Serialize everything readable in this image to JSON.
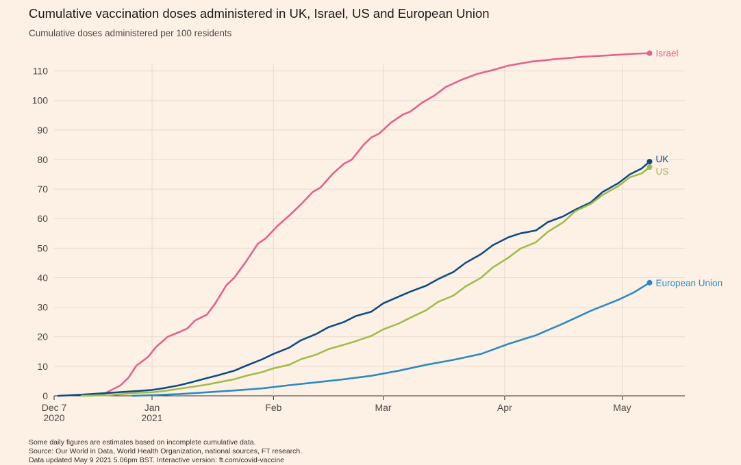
{
  "title": "Cumulative vaccination doses administered in UK, Israel, US and European Union",
  "subtitle": "Cumulative doses administered per 100 residents",
  "footer": {
    "line1": "Some daily figures are estimates based on incomplete cumulative data.",
    "line2": "Source: Our World in Data, World Health Organization, national sources, FT research.",
    "line3": "Data updated May 9 2021 5.06pm BST. Interactive version: ft.com/covid-vaccine"
  },
  "chart_data": {
    "type": "line",
    "title": "Cumulative vaccination doses administered in UK, Israel, US and European Union",
    "subtitle": "Cumulative doses administered per 100 residents",
    "xlabel": "",
    "ylabel": "",
    "ylim": [
      0,
      115
    ],
    "yticks": [
      0,
      10,
      20,
      30,
      40,
      50,
      60,
      70,
      80,
      90,
      100,
      110
    ],
    "xlim": [
      "2020-12-07",
      "2021-05-17"
    ],
    "xticks": [
      {
        "date": "2020-12-07",
        "line1": "Dec 7",
        "line2": "2020"
      },
      {
        "date": "2021-01-01",
        "line1": "Jan",
        "line2": "2021"
      },
      {
        "date": "2021-02-01",
        "line1": "Feb",
        "line2": ""
      },
      {
        "date": "2021-03-01",
        "line1": "Mar",
        "line2": ""
      },
      {
        "date": "2021-04-01",
        "line1": "Apr",
        "line2": ""
      },
      {
        "date": "2021-05-01",
        "line1": "May",
        "line2": ""
      }
    ],
    "grid": true,
    "legend": "end-labels",
    "series": [
      {
        "name": "Israel",
        "color": "#e3628f",
        "points": [
          [
            "2020-12-19",
            0.2
          ],
          [
            "2020-12-22",
            2.2
          ],
          [
            "2020-12-24",
            3.6
          ],
          [
            "2020-12-26",
            6.2
          ],
          [
            "2020-12-28",
            10.2
          ],
          [
            "2020-12-31",
            13.2
          ],
          [
            "2021-01-02",
            16.5
          ],
          [
            "2021-01-05",
            20
          ],
          [
            "2021-01-08",
            21.6
          ],
          [
            "2021-01-10",
            22.8
          ],
          [
            "2021-01-12",
            25.5
          ],
          [
            "2021-01-15",
            27.5
          ],
          [
            "2021-01-17",
            31
          ],
          [
            "2021-01-20",
            37.5
          ],
          [
            "2021-01-22",
            40
          ],
          [
            "2021-01-25",
            45.5
          ],
          [
            "2021-01-28",
            51.5
          ],
          [
            "2021-01-30",
            53.3
          ],
          [
            "2021-02-02",
            57.5
          ],
          [
            "2021-02-05",
            61
          ],
          [
            "2021-02-08",
            64.8
          ],
          [
            "2021-02-11",
            69
          ],
          [
            "2021-02-13",
            70.5
          ],
          [
            "2021-02-16",
            75
          ],
          [
            "2021-02-19",
            78.6
          ],
          [
            "2021-02-21",
            80
          ],
          [
            "2021-02-24",
            85
          ],
          [
            "2021-02-26",
            87.5
          ],
          [
            "2021-02-28",
            88.8
          ],
          [
            "2021-03-03",
            92.5
          ],
          [
            "2021-03-06",
            95.2
          ],
          [
            "2021-03-08",
            96.3
          ],
          [
            "2021-03-11",
            99.3
          ],
          [
            "2021-03-14",
            101.6
          ],
          [
            "2021-03-17",
            104.6
          ],
          [
            "2021-03-21",
            107
          ],
          [
            "2021-03-25",
            109
          ],
          [
            "2021-03-29",
            110.3
          ],
          [
            "2021-04-02",
            111.8
          ],
          [
            "2021-04-08",
            113.2
          ],
          [
            "2021-04-14",
            114
          ],
          [
            "2021-04-21",
            114.8
          ],
          [
            "2021-04-28",
            115.3
          ],
          [
            "2021-05-04",
            115.8
          ],
          [
            "2021-05-08",
            116
          ]
        ]
      },
      {
        "name": "UK",
        "color": "#0f4c81",
        "points": [
          [
            "2020-12-08",
            0
          ],
          [
            "2020-12-14",
            0.4
          ],
          [
            "2020-12-21",
            1
          ],
          [
            "2020-12-28",
            1.6
          ],
          [
            "2021-01-01",
            2
          ],
          [
            "2021-01-04",
            2.6
          ],
          [
            "2021-01-08",
            3.6
          ],
          [
            "2021-01-11",
            4.6
          ],
          [
            "2021-01-15",
            6
          ],
          [
            "2021-01-18",
            7
          ],
          [
            "2021-01-22",
            8.5
          ],
          [
            "2021-01-25",
            10.2
          ],
          [
            "2021-01-29",
            12.3
          ],
          [
            "2021-02-01",
            14.2
          ],
          [
            "2021-02-05",
            16.3
          ],
          [
            "2021-02-08",
            18.8
          ],
          [
            "2021-02-12",
            21
          ],
          [
            "2021-02-15",
            23.2
          ],
          [
            "2021-02-19",
            25
          ],
          [
            "2021-02-22",
            27
          ],
          [
            "2021-02-26",
            28.5
          ],
          [
            "2021-03-01",
            31.3
          ],
          [
            "2021-03-05",
            33.6
          ],
          [
            "2021-03-08",
            35.3
          ],
          [
            "2021-03-12",
            37.3
          ],
          [
            "2021-03-15",
            39.5
          ],
          [
            "2021-03-19",
            42
          ],
          [
            "2021-03-22",
            45
          ],
          [
            "2021-03-26",
            48
          ],
          [
            "2021-03-29",
            51
          ],
          [
            "2021-04-02",
            53.7
          ],
          [
            "2021-04-05",
            55
          ],
          [
            "2021-04-09",
            56
          ],
          [
            "2021-04-12",
            58.8
          ],
          [
            "2021-04-16",
            60.8
          ],
          [
            "2021-04-19",
            63
          ],
          [
            "2021-04-23",
            65.5
          ],
          [
            "2021-04-26",
            69
          ],
          [
            "2021-04-30",
            72
          ],
          [
            "2021-05-03",
            75
          ],
          [
            "2021-05-06",
            77
          ],
          [
            "2021-05-08",
            79.3
          ]
        ]
      },
      {
        "name": "US",
        "color": "#a2bb4d",
        "points": [
          [
            "2020-12-14",
            0
          ],
          [
            "2020-12-21",
            0.2
          ],
          [
            "2020-12-28",
            1
          ],
          [
            "2021-01-01",
            1.2
          ],
          [
            "2021-01-04",
            1.6
          ],
          [
            "2021-01-08",
            2.4
          ],
          [
            "2021-01-11",
            3
          ],
          [
            "2021-01-15",
            3.8
          ],
          [
            "2021-01-18",
            4.6
          ],
          [
            "2021-01-22",
            5.6
          ],
          [
            "2021-01-25",
            6.8
          ],
          [
            "2021-01-29",
            8
          ],
          [
            "2021-02-01",
            9.3
          ],
          [
            "2021-02-05",
            10.5
          ],
          [
            "2021-02-08",
            12.4
          ],
          [
            "2021-02-12",
            14
          ],
          [
            "2021-02-15",
            15.8
          ],
          [
            "2021-02-19",
            17.3
          ],
          [
            "2021-02-22",
            18.5
          ],
          [
            "2021-02-26",
            20.3
          ],
          [
            "2021-03-01",
            22.5
          ],
          [
            "2021-03-05",
            24.5
          ],
          [
            "2021-03-08",
            26.5
          ],
          [
            "2021-03-12",
            29
          ],
          [
            "2021-03-15",
            31.8
          ],
          [
            "2021-03-19",
            34
          ],
          [
            "2021-03-22",
            37
          ],
          [
            "2021-03-26",
            40
          ],
          [
            "2021-03-29",
            43.5
          ],
          [
            "2021-04-02",
            46.8
          ],
          [
            "2021-04-05",
            49.8
          ],
          [
            "2021-04-09",
            52
          ],
          [
            "2021-04-12",
            55.5
          ],
          [
            "2021-04-16",
            58.8
          ],
          [
            "2021-04-19",
            62.5
          ],
          [
            "2021-04-23",
            65
          ],
          [
            "2021-04-26",
            68
          ],
          [
            "2021-04-30",
            71
          ],
          [
            "2021-05-03",
            74
          ],
          [
            "2021-05-06",
            75.3
          ],
          [
            "2021-05-08",
            77.4
          ]
        ]
      },
      {
        "name": "European Union",
        "color": "#2a8ac5",
        "points": [
          [
            "2020-12-27",
            0
          ],
          [
            "2021-01-01",
            0.2
          ],
          [
            "2021-01-08",
            0.6
          ],
          [
            "2021-01-15",
            1.2
          ],
          [
            "2021-01-22",
            1.8
          ],
          [
            "2021-01-29",
            2.5
          ],
          [
            "2021-02-05",
            3.6
          ],
          [
            "2021-02-12",
            4.6
          ],
          [
            "2021-02-19",
            5.6
          ],
          [
            "2021-02-26",
            6.8
          ],
          [
            "2021-03-05",
            8.5
          ],
          [
            "2021-03-12",
            10.5
          ],
          [
            "2021-03-19",
            12.2
          ],
          [
            "2021-03-26",
            14.2
          ],
          [
            "2021-04-02",
            17.6
          ],
          [
            "2021-04-09",
            20.5
          ],
          [
            "2021-04-16",
            24.5
          ],
          [
            "2021-04-23",
            28.8
          ],
          [
            "2021-04-30",
            32.5
          ],
          [
            "2021-05-04",
            35
          ],
          [
            "2021-05-08",
            38.3
          ]
        ]
      }
    ]
  }
}
